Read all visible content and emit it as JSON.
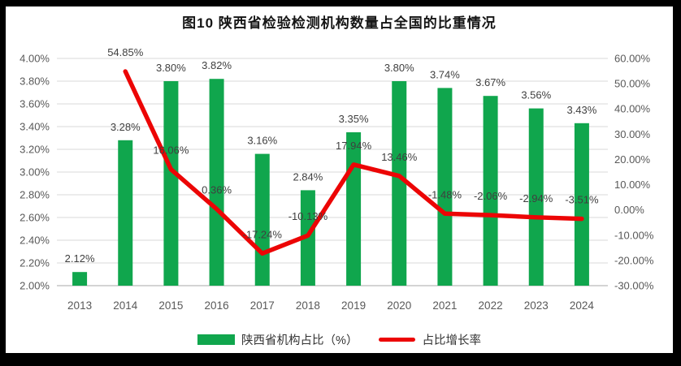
{
  "chart_data": {
    "type": "combo-bar-line",
    "title": "图10  陕西省检验检测机构数量占全国的比重情况",
    "categories": [
      "2013",
      "2014",
      "2015",
      "2016",
      "2017",
      "2018",
      "2019",
      "2020",
      "2021",
      "2022",
      "2023",
      "2024"
    ],
    "series": [
      {
        "name": "陕西省机构占比（%）",
        "type": "bar",
        "axis": "left",
        "color": "#10a64d",
        "values": [
          2.12,
          3.28,
          3.8,
          3.82,
          3.16,
          2.84,
          3.35,
          3.8,
          3.74,
          3.67,
          3.56,
          3.43
        ],
        "labels": [
          "2.12%",
          "3.28%",
          "3.80%",
          "3.82%",
          "3.16%",
          "2.84%",
          "3.35%",
          "3.80%",
          "3.74%",
          "3.67%",
          "3.56%",
          "3.43%"
        ]
      },
      {
        "name": "占比增长率",
        "type": "line",
        "axis": "right",
        "color": "#ec0505",
        "values": [
          null,
          54.85,
          16.06,
          0.36,
          -17.24,
          -10.13,
          17.94,
          13.46,
          -1.48,
          -2.06,
          -2.94,
          -3.51
        ],
        "labels": [
          null,
          "54.85%",
          "16.06%",
          "0.36%",
          "-17.24%",
          "-10.13%",
          "17.94%",
          "13.46%",
          "-1.48%",
          "-2.06%",
          "-2.94%",
          "-3.51%"
        ]
      }
    ],
    "left_axis": {
      "min": 2.0,
      "max": 4.0,
      "step": 0.2,
      "tick_labels": [
        "4.00%",
        "3.80%",
        "3.60%",
        "3.40%",
        "3.20%",
        "3.00%",
        "2.80%",
        "2.60%",
        "2.40%",
        "2.20%",
        "2.00%"
      ]
    },
    "right_axis": {
      "min": -30,
      "max": 60,
      "step": 10,
      "tick_labels": [
        "60.00%",
        "50.00%",
        "40.00%",
        "30.00%",
        "20.00%",
        "10.00%",
        "0.00%",
        "-10.00%",
        "-20.00%",
        "-30.00%"
      ]
    },
    "grid": true,
    "legend_position": "bottom"
  },
  "style": {
    "grid_color": "#d9d9d9",
    "axis_line_color": "#c6c6c6",
    "tick_label_color": "#595959",
    "data_label_color": "#3f3f3f",
    "frame_color": "#000000",
    "background": "#ffffff"
  }
}
